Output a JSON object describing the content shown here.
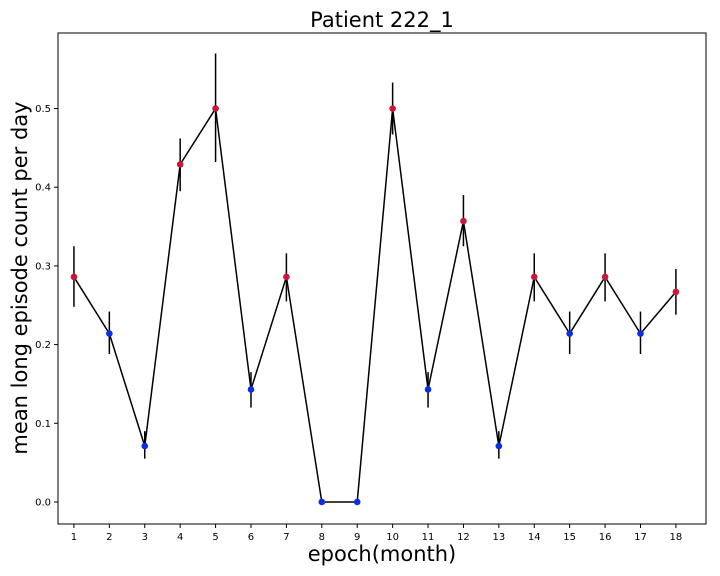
{
  "chart_data": {
    "type": "line",
    "title": "Patient 222_1",
    "xlabel": "epoch(month)",
    "ylabel": "mean long episode count per day",
    "x": [
      1,
      2,
      3,
      4,
      5,
      6,
      7,
      8,
      9,
      10,
      11,
      12,
      13,
      14,
      15,
      16,
      17,
      18
    ],
    "x_ticks": [
      "1",
      "2",
      "3",
      "4",
      "5",
      "6",
      "7",
      "8",
      "9",
      "10",
      "11",
      "12",
      "13",
      "14",
      "15",
      "16",
      "17",
      "18"
    ],
    "y_ticks": [
      "0.0",
      "0.1",
      "0.2",
      "0.3",
      "0.4",
      "0.5"
    ],
    "xlim": [
      0.55,
      18.85
    ],
    "ylim": [
      -0.028,
      0.596
    ],
    "series": [
      {
        "values": [
          0.286,
          0.214,
          0.071,
          0.429,
          0.5,
          0.143,
          0.286,
          0.0,
          0.0,
          0.5,
          0.143,
          0.357,
          0.071,
          0.286,
          0.214,
          0.286,
          0.214,
          0.267
        ],
        "error_low": [
          0.248,
          0.188,
          0.055,
          0.395,
          0.432,
          0.12,
          0.255,
          0.0,
          0.0,
          0.467,
          0.12,
          0.325,
          0.055,
          0.255,
          0.188,
          0.255,
          0.188,
          0.238
        ],
        "error_high": [
          0.325,
          0.242,
          0.09,
          0.462,
          0.57,
          0.165,
          0.316,
          0.0,
          0.0,
          0.533,
          0.165,
          0.39,
          0.09,
          0.316,
          0.242,
          0.316,
          0.242,
          0.296
        ],
        "marker_class": [
          "high",
          "low",
          "low",
          "high",
          "high",
          "low",
          "high",
          "low",
          "low",
          "high",
          "low",
          "high",
          "low",
          "high",
          "low",
          "high",
          "low",
          "high"
        ]
      }
    ],
    "colors": {
      "line": "#000000",
      "errorbar": "#000000",
      "marker_high": "#c8173d",
      "marker_low": "#0a2fe0"
    },
    "grid": false,
    "legend": "none"
  }
}
